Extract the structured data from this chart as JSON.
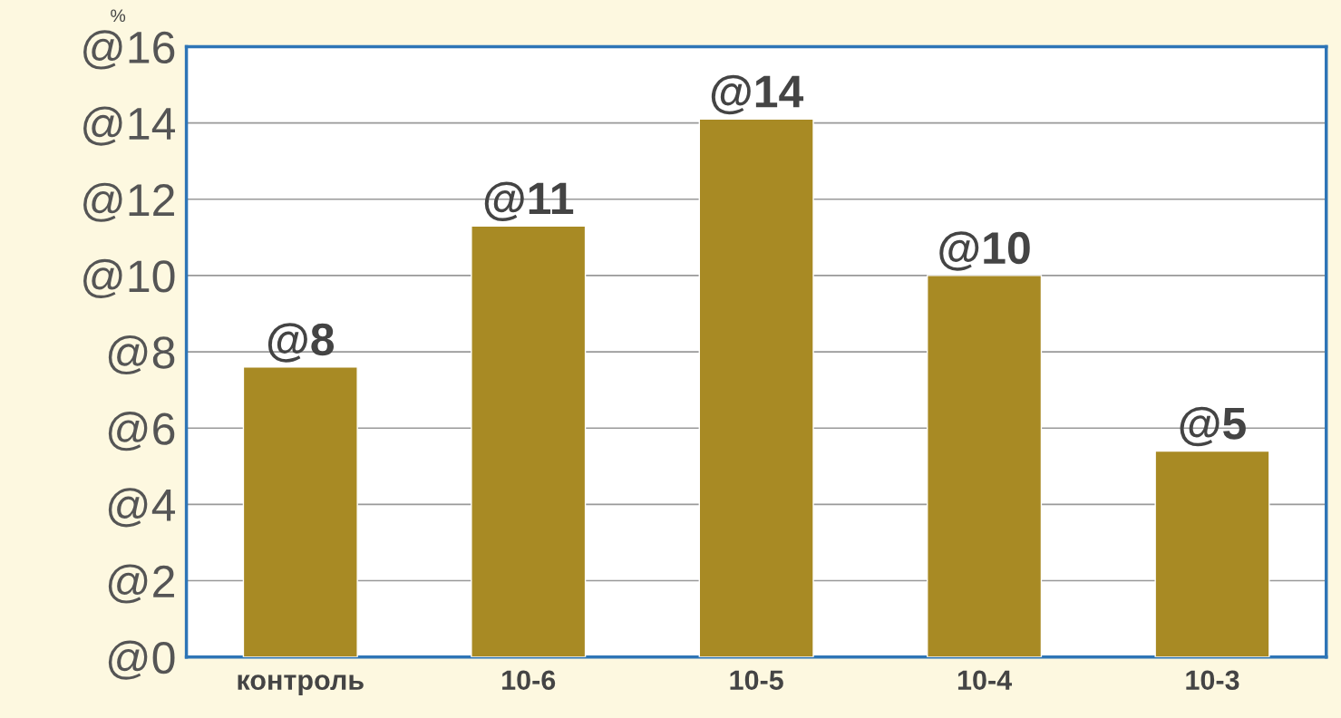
{
  "chart_data": {
    "type": "bar",
    "ylabel": "%",
    "categories": [
      "контроль",
      "10-6",
      "10-5",
      "10-4",
      "10-3"
    ],
    "values": [
      7.6,
      11.3,
      14.1,
      10.0,
      5.4
    ],
    "value_labels": [
      "@8",
      "@11",
      "@14",
      "@10",
      "@5"
    ],
    "color": "#a88a24",
    "ylim": [
      0,
      16
    ],
    "yticks": [
      {
        "value": 0,
        "label": "@0"
      },
      {
        "value": 2,
        "label": "@2"
      },
      {
        "value": 4,
        "label": "@4"
      },
      {
        "value": 6,
        "label": "@6"
      },
      {
        "value": 8,
        "label": "@8"
      },
      {
        "value": 10,
        "label": "@10"
      },
      {
        "value": 12,
        "label": "@12"
      },
      {
        "value": 14,
        "label": "@14"
      },
      {
        "value": 16,
        "label": "@16"
      }
    ],
    "grid": "y"
  }
}
